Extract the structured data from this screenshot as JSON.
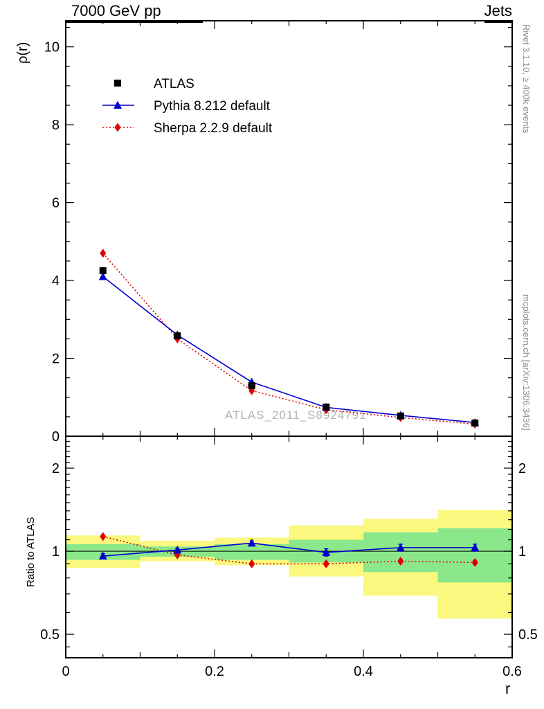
{
  "header": {
    "title_left": "7000 GeV pp",
    "title_right": "Jets"
  },
  "side": {
    "rivet": "Rivet 3.1.10, ≥ 400k events",
    "mcplots": "mcplots.cern.ch [arXiv:1306.3436]"
  },
  "watermark": "ATLAS_2011_S8924791",
  "chart_data": {
    "type": "line",
    "title": "7000 GeV pp — Jets",
    "xlabel": "r",
    "ylabel": "ρ(r)",
    "xlim": [
      0,
      0.6
    ],
    "ylim": [
      0,
      10.67
    ],
    "grid": false,
    "legend_position": "top-left-inside",
    "x": [
      0.05,
      0.15,
      0.25,
      0.35,
      0.45,
      0.55
    ],
    "xticks": {
      "major": [
        0,
        0.2,
        0.4,
        0.6
      ],
      "labels": [
        "0",
        "0.2",
        "0.4",
        "0.6"
      ],
      "medium": [
        0.1,
        0.3,
        0.5
      ],
      "minor": [
        0.05,
        0.15,
        0.25,
        0.35,
        0.45,
        0.55
      ]
    },
    "yticks_main": {
      "major": [
        0,
        2,
        4,
        6,
        8,
        10
      ],
      "labels": [
        "0",
        "2",
        "4",
        "6",
        "8",
        "10"
      ],
      "minor_step": 0.5
    },
    "series": [
      {
        "name": "ATLAS",
        "marker": "square",
        "color": "#000000",
        "line": "none",
        "values": [
          4.25,
          2.58,
          1.3,
          0.75,
          0.52,
          0.34
        ],
        "errors": [
          0.08,
          0.05,
          0.03,
          0.02,
          0.015,
          0.01
        ]
      },
      {
        "name": "Pythia 8.212 default",
        "marker": "triangle",
        "color": "#0000cc",
        "line": "solid",
        "values": [
          4.1,
          2.6,
          1.39,
          0.74,
          0.535,
          0.35
        ],
        "errors": [
          0.05,
          0.03,
          0.02,
          0.015,
          0.01,
          0.01
        ]
      },
      {
        "name": "Sherpa 2.2.9 default",
        "marker": "diamond",
        "color": "#e00000",
        "line": "dotted",
        "values": [
          4.7,
          2.5,
          1.17,
          0.68,
          0.48,
          0.31
        ],
        "errors": [
          0.05,
          0.03,
          0.02,
          0.01,
          0.01,
          0.01
        ]
      }
    ],
    "ratio": {
      "ylabel": "Ratio to ATLAS",
      "scale": "log",
      "ylim": [
        0.411,
        2.61
      ],
      "reference_line": 1,
      "yticks": {
        "major": [
          0.5,
          1,
          2
        ],
        "labels": [
          "0.5",
          "1",
          "2"
        ],
        "minor": [
          0.45,
          0.6,
          0.7,
          0.8,
          0.9,
          1.1,
          1.2,
          1.3,
          1.4,
          1.5,
          1.6,
          1.7,
          1.8,
          1.9,
          2.1,
          2.2,
          2.3,
          2.4,
          2.5
        ]
      },
      "series": [
        {
          "name": "Pythia 8.212 default",
          "marker": "triangle",
          "color": "#0000cc",
          "line": "solid",
          "values": [
            0.96,
            1.01,
            1.07,
            0.99,
            1.03,
            1.03
          ],
          "errors": [
            0.02,
            0.015,
            0.02,
            0.03,
            0.03,
            0.03
          ]
        },
        {
          "name": "Sherpa 2.2.9 default",
          "marker": "diamond",
          "color": "#e00000",
          "line": "dotted",
          "values": [
            1.13,
            0.97,
            0.9,
            0.9,
            0.92,
            0.91
          ],
          "errors": [
            0.01,
            0.01,
            0.01,
            0.015,
            0.015,
            0.015
          ]
        }
      ],
      "bands": [
        {
          "x0": 0.0,
          "x1": 0.1,
          "yellow": [
            0.87,
            1.14
          ],
          "green": [
            0.93,
            1.06
          ]
        },
        {
          "x0": 0.1,
          "x1": 0.2,
          "yellow": [
            0.92,
            1.09
          ],
          "green": [
            0.955,
            1.04
          ]
        },
        {
          "x0": 0.2,
          "x1": 0.3,
          "yellow": [
            0.89,
            1.12
          ],
          "green": [
            0.93,
            1.06
          ]
        },
        {
          "x0": 0.3,
          "x1": 0.4,
          "yellow": [
            0.81,
            1.24
          ],
          "green": [
            0.91,
            1.1
          ]
        },
        {
          "x0": 0.4,
          "x1": 0.5,
          "yellow": [
            0.69,
            1.31
          ],
          "green": [
            0.84,
            1.17
          ]
        },
        {
          "x0": 0.5,
          "x1": 0.6,
          "yellow": [
            0.57,
            1.41
          ],
          "green": [
            0.77,
            1.21
          ]
        }
      ],
      "band_colors": {
        "yellow": "#faf87e",
        "green": "#8ae88a"
      }
    }
  }
}
